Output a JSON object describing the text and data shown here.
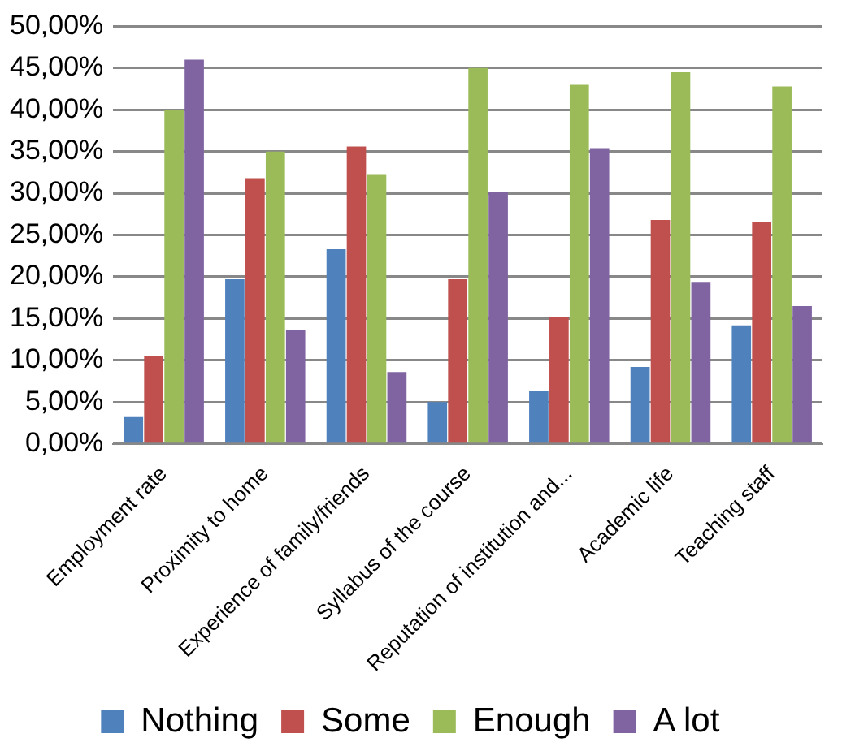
{
  "chart_data": {
    "type": "bar",
    "categories": [
      "Employment rate",
      "Proximity to home",
      "Experience of family/friends",
      "Syllabus of the course",
      "Reputation of institution and...",
      "Academic life",
      "Teaching staff"
    ],
    "series": [
      {
        "name": "Nothing",
        "color": "#4f81bd",
        "values": [
          3.2,
          19.7,
          23.3,
          5.0,
          6.3,
          9.2,
          14.2
        ]
      },
      {
        "name": "Some",
        "color": "#c0504d",
        "values": [
          10.5,
          31.8,
          35.6,
          19.7,
          15.2,
          26.8,
          26.5
        ]
      },
      {
        "name": "Enough",
        "color": "#9bbb59",
        "values": [
          40.0,
          35.0,
          32.3,
          45.0,
          43.0,
          44.5,
          42.8
        ]
      },
      {
        "name": "A lot",
        "color": "#8064a2",
        "values": [
          46.0,
          13.6,
          8.6,
          30.2,
          35.4,
          19.4,
          16.5
        ]
      }
    ],
    "ylim": [
      0,
      50
    ],
    "yticks": [
      {
        "value": 0,
        "label": "0,00%"
      },
      {
        "value": 5,
        "label": "5,00%"
      },
      {
        "value": 10,
        "label": "10,00%"
      },
      {
        "value": 15,
        "label": "15,00%"
      },
      {
        "value": 20,
        "label": "20,00%"
      },
      {
        "value": 25,
        "label": "25,00%"
      },
      {
        "value": 30,
        "label": "30,00%"
      },
      {
        "value": 35,
        "label": "35,00%"
      },
      {
        "value": 40,
        "label": "40,00%"
      },
      {
        "value": 45,
        "label": "45,00%"
      },
      {
        "value": 50,
        "label": "50,00%"
      }
    ],
    "grid": "y",
    "legend": "bottom"
  }
}
